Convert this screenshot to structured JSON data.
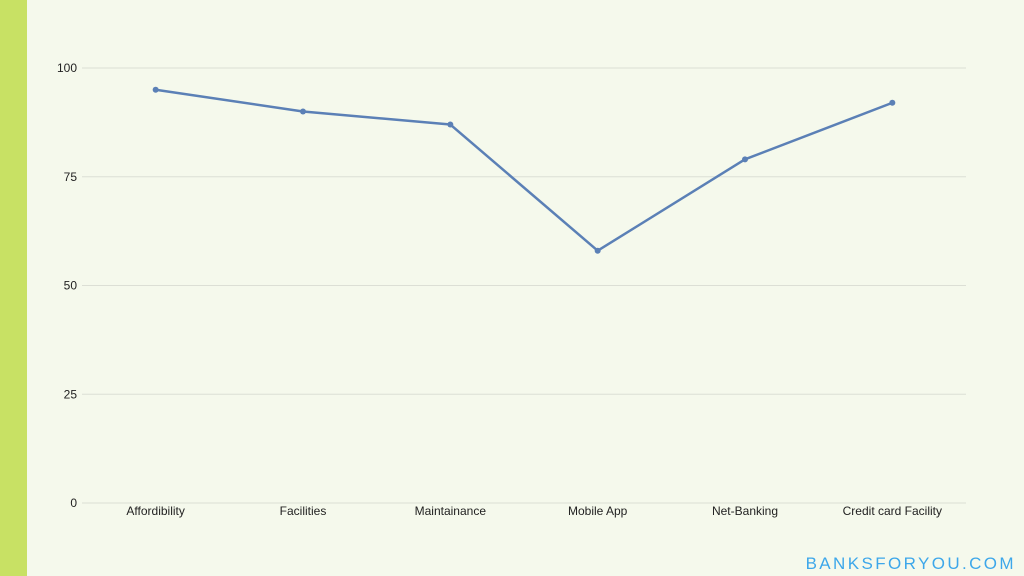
{
  "colors": {
    "background": "#f5f9ec",
    "accent_bar": "#c8e164",
    "series_line": "#5b80b6",
    "gridline": "#dcdfd5",
    "axis_text": "#222222",
    "watermark": "#3da7ea"
  },
  "watermark": "BANKSFORYOU.COM",
  "chart_data": {
    "type": "line",
    "title": "",
    "xlabel": "",
    "ylabel": "",
    "categories": [
      "Affordibility",
      "Facilities",
      "Maintainance",
      "Mobile App",
      "Net-Banking",
      "Credit card Facility"
    ],
    "series": [
      {
        "values": [
          95,
          90,
          87,
          58,
          79,
          92
        ]
      }
    ],
    "ylim": [
      0,
      100
    ],
    "yticks": [
      0,
      25,
      50,
      75,
      100
    ],
    "grid": true,
    "legend": "none"
  }
}
